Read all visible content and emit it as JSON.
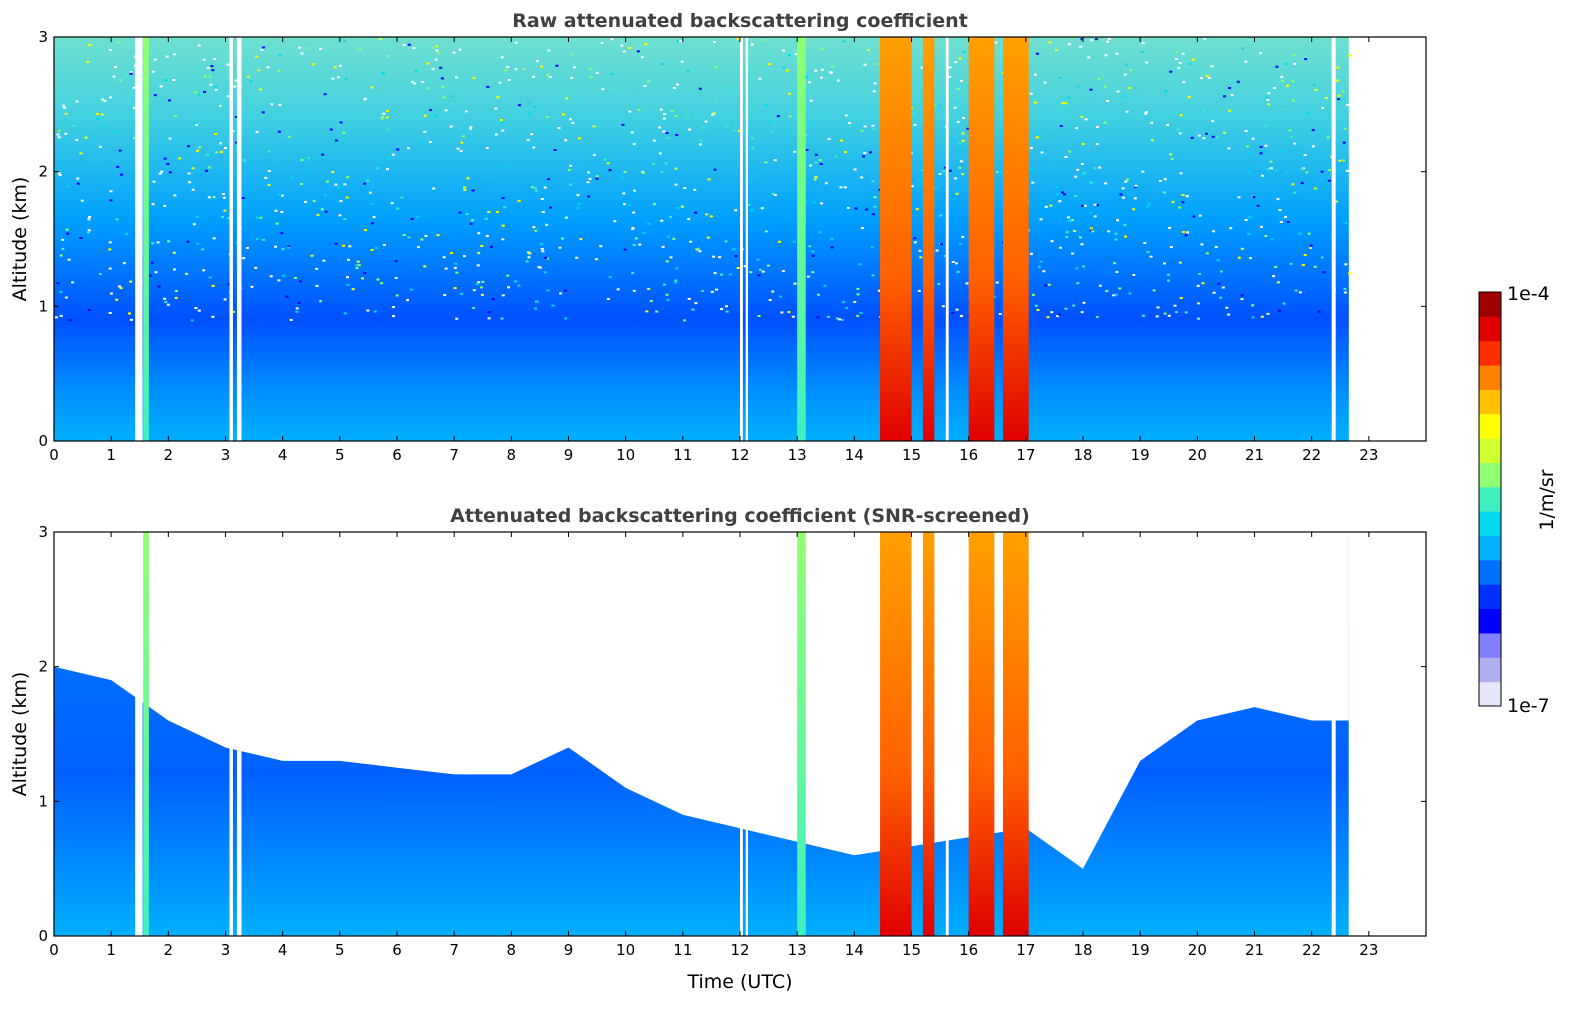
{
  "chart_data": [
    {
      "type": "heatmap",
      "title": "Raw attenuated backscattering coefficient",
      "xlabel": "",
      "ylabel": "Altitude (km)",
      "xlim": [
        0,
        24
      ],
      "ylim": [
        0,
        3
      ],
      "xticks": [
        "0",
        "1",
        "2",
        "3",
        "4",
        "5",
        "6",
        "7",
        "8",
        "9",
        "10",
        "11",
        "12",
        "13",
        "14",
        "15",
        "16",
        "17",
        "18",
        "19",
        "20",
        "21",
        "22",
        "23"
      ],
      "yticks": [
        "0",
        "1",
        "2",
        "3"
      ],
      "data_end_hour": 22.65,
      "gaps_hours": [
        [
          1.42,
          1.55
        ],
        [
          3.07,
          3.13
        ],
        [
          3.2,
          3.28
        ],
        [
          12.0,
          12.05
        ],
        [
          12.1,
          12.14
        ],
        [
          15.6,
          15.65
        ],
        [
          22.35,
          22.42
        ]
      ],
      "cloud_bands_hours": [
        [
          1.56,
          1.66
        ],
        [
          13.0,
          13.15
        ],
        [
          14.45,
          15.0
        ],
        [
          15.2,
          15.4
        ],
        [
          16.0,
          16.45
        ],
        [
          16.6,
          17.05
        ]
      ]
    },
    {
      "type": "heatmap",
      "title": "Attenuated backscattering coefficient (SNR-screened)",
      "xlabel": "Time (UTC)",
      "ylabel": "Altitude (km)",
      "xlim": [
        0,
        24
      ],
      "ylim": [
        0,
        3
      ],
      "xticks": [
        "0",
        "1",
        "2",
        "3",
        "4",
        "5",
        "6",
        "7",
        "8",
        "9",
        "10",
        "11",
        "12",
        "13",
        "14",
        "15",
        "16",
        "17",
        "18",
        "19",
        "20",
        "21",
        "22",
        "23"
      ],
      "yticks": [
        "0",
        "1",
        "2",
        "3"
      ],
      "data_end_hour": 22.65,
      "screened_top_km": [
        [
          0,
          2.0
        ],
        [
          1,
          1.9
        ],
        [
          2,
          1.6
        ],
        [
          3,
          1.4
        ],
        [
          4,
          1.3
        ],
        [
          5,
          1.3
        ],
        [
          6,
          1.25
        ],
        [
          7,
          1.2
        ],
        [
          8,
          1.2
        ],
        [
          9,
          1.4
        ],
        [
          10,
          1.1
        ],
        [
          11,
          0.9
        ],
        [
          12,
          0.8
        ],
        [
          13,
          0.7
        ],
        [
          14,
          0.6
        ],
        [
          17,
          0.8
        ],
        [
          18,
          0.5
        ],
        [
          19,
          1.3
        ],
        [
          20,
          1.6
        ],
        [
          21,
          1.7
        ],
        [
          22,
          1.6
        ],
        [
          22.65,
          1.6
        ]
      ]
    }
  ],
  "colorbar": {
    "label": "1/m/sr",
    "max_label": "1e-4",
    "min_label": "1e-7",
    "colors": [
      "#e6e6fa",
      "#b0b0f0",
      "#8080ff",
      "#0000ff",
      "#0030ff",
      "#0070ff",
      "#00b0ff",
      "#00d8f0",
      "#40f0c0",
      "#90ff70",
      "#d0ff30",
      "#ffff00",
      "#ffc000",
      "#ff8000",
      "#ff3000",
      "#e00000",
      "#a00000"
    ]
  }
}
